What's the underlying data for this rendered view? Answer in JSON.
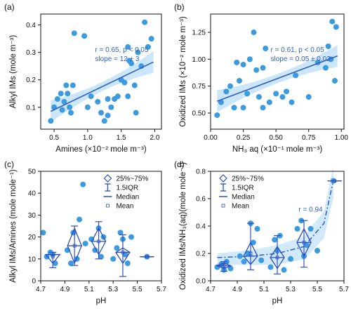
{
  "chart_data": [
    {
      "id": "a",
      "type": "scatter",
      "panel_label": "(a)",
      "xlabel": "Amines (×10⁻² mole m⁻³)",
      "ylabel": "Alkyl IMs (mole m⁻³)",
      "xlim": [
        0.3,
        2.1
      ],
      "ylim": [
        0.02,
        0.44
      ],
      "xticks": [
        0.5,
        1.0,
        1.5,
        2.0
      ],
      "xtick_labels": [
        "0.5",
        "1.0",
        "1.5",
        "2.0"
      ],
      "yticks": [
        0.1,
        0.2,
        0.3,
        0.4
      ],
      "ytick_labels": [
        "0.1",
        "0.2",
        "0.3",
        "0.4"
      ],
      "annotation": [
        "r = 0.65, p < 0.05",
        "slope = 12 ± 3"
      ],
      "fit": {
        "x": [
          0.45,
          1.98
        ],
        "y": [
          0.085,
          0.265
        ]
      },
      "points": {
        "x": [
          0.45,
          0.5,
          0.55,
          0.6,
          0.62,
          0.65,
          0.68,
          0.7,
          0.73,
          0.75,
          0.78,
          0.8,
          1.0,
          1.05,
          1.15,
          1.2,
          1.25,
          1.3,
          1.35,
          1.4,
          1.45,
          1.5,
          1.55,
          1.6,
          1.6,
          1.65,
          1.7,
          1.72,
          1.75,
          1.8,
          1.85,
          1.9,
          1.95,
          1.62,
          1.3,
          0.95
        ],
        "y": [
          0.05,
          0.1,
          0.13,
          0.15,
          0.09,
          0.12,
          0.18,
          0.15,
          0.1,
          0.08,
          0.18,
          0.37,
          0.1,
          0.14,
          0.12,
          0.08,
          0.05,
          0.13,
          0.1,
          0.13,
          0.14,
          0.2,
          0.19,
          0.14,
          0.32,
          0.26,
          0.18,
          0.08,
          0.3,
          0.25,
          0.41,
          0.32,
          0.35,
          0.27,
          0.07,
          0.36
        ]
      }
    },
    {
      "id": "b",
      "type": "scatter",
      "panel_label": "(b)",
      "xlabel": "NH₃ aq (×10⁻¹ mole m⁻³)",
      "ylabel": "Oxidized IMs (×10⁻² mole m⁻³)",
      "xlim": [
        0.0,
        1.02
      ],
      "ylim": [
        0.35,
        1.42
      ],
      "xticks": [
        0.0,
        0.25,
        0.5,
        0.75,
        1.0
      ],
      "xtick_labels": [
        "0.00",
        "0.25",
        "0.50",
        "0.75",
        "1.00"
      ],
      "yticks": [
        0.5,
        0.75,
        1.0,
        1.25
      ],
      "ytick_labels": [
        "0.50",
        "0.75",
        "1.00",
        "1.25"
      ],
      "annotation": [
        "r = 0.61, p < 0.05",
        "slope = 0.05 ± 0.02"
      ],
      "fit": {
        "x": [
          0.05,
          0.97
        ],
        "y": [
          0.61,
          1.03
        ]
      },
      "points": {
        "x": [
          0.05,
          0.08,
          0.12,
          0.15,
          0.18,
          0.2,
          0.22,
          0.25,
          0.28,
          0.3,
          0.33,
          0.35,
          0.37,
          0.4,
          0.42,
          0.45,
          0.5,
          0.55,
          0.58,
          0.62,
          0.65,
          0.75,
          0.82,
          0.88,
          0.9,
          0.92,
          0.93,
          0.95,
          0.96,
          0.25,
          0.4
        ],
        "y": [
          0.48,
          0.6,
          0.7,
          0.75,
          0.55,
          0.97,
          0.8,
          0.55,
          0.68,
          1.0,
          1.25,
          0.9,
          0.65,
          0.92,
          1.1,
          0.6,
          0.68,
          0.65,
          0.7,
          0.6,
          0.85,
          0.65,
          0.97,
          0.92,
          1.12,
          1.0,
          1.35,
          0.8,
          1.3,
          0.95,
          0.55
        ]
      }
    },
    {
      "id": "c",
      "type": "box",
      "panel_label": "(c)",
      "xlabel": "pH",
      "ylabel": "Alkyl IMs/Amines (mole mole⁻¹)",
      "xlim": [
        4.7,
        5.7
      ],
      "ylim": [
        0,
        50
      ],
      "xticks": [
        4.7,
        4.9,
        5.1,
        5.3,
        5.5,
        5.7
      ],
      "xtick_labels": [
        "4.7",
        "4.9",
        "5.1",
        "5.3",
        "5.5",
        "5.7"
      ],
      "yticks": [
        0,
        10,
        20,
        30,
        40,
        50
      ],
      "ytick_labels": [
        "0",
        "10",
        "20",
        "30",
        "40",
        "50"
      ],
      "legend": {
        "items": [
          "25%~75%",
          "1.5IQR",
          "Median",
          "Mean"
        ],
        "placement": "top-right"
      },
      "boxes": [
        {
          "x": 4.8,
          "q1": 8,
          "median": 12,
          "q3": 12,
          "whisker_low": 6,
          "whisker_high": 13,
          "mean": 11
        },
        {
          "x": 4.98,
          "q1": 8,
          "median": 16,
          "q3": 24,
          "whisker_low": 7,
          "whisker_high": 25,
          "mean": 16
        },
        {
          "x": 5.18,
          "q1": 12,
          "median": 18,
          "q3": 24,
          "whisker_low": 10,
          "whisker_high": 27,
          "mean": 18
        },
        {
          "x": 5.38,
          "q1": 8,
          "median": 13,
          "q3": 15,
          "whisker_low": 2,
          "whisker_high": 21,
          "mean": 13
        },
        {
          "x": 5.58,
          "q1": 11,
          "median": 11,
          "q3": 11,
          "whisker_low": 11,
          "whisker_high": 11,
          "mean": 11
        }
      ],
      "points": {
        "x": [
          4.72,
          4.75,
          4.78,
          4.8,
          4.82,
          4.92,
          4.95,
          4.97,
          5.0,
          5.02,
          5.05,
          5.07,
          5.12,
          5.15,
          5.18,
          5.2,
          5.22,
          5.3,
          5.33,
          5.36,
          5.38,
          5.4,
          5.42,
          5.45,
          5.58
        ],
        "y": [
          22,
          11,
          13,
          12,
          8,
          14,
          8,
          22,
          10,
          28,
          44,
          17,
          19,
          14,
          24,
          11,
          20,
          10,
          15,
          22,
          19,
          12,
          8,
          20,
          11
        ]
      }
    },
    {
      "id": "d",
      "type": "box",
      "panel_label": "(d)",
      "xlabel": "pH",
      "ylabel": "Oxidized IMs/NH₃(aq)(mole mole⁻¹)",
      "xlim": [
        4.7,
        5.7
      ],
      "ylim": [
        0,
        0.8
      ],
      "xticks": [
        4.7,
        4.9,
        5.1,
        5.3,
        5.5,
        5.7
      ],
      "xtick_labels": [
        "4.7",
        "4.9",
        "5.1",
        "5.3",
        "5.5",
        "5.7"
      ],
      "yticks": [
        0,
        0.2,
        0.4,
        0.6,
        0.8
      ],
      "ytick_labels": [
        "0.0",
        "0.2",
        "0.4",
        "0.6",
        "0.8"
      ],
      "legend": {
        "items": [
          "25%~75%",
          "1.5IQR",
          "Median",
          "Mean"
        ],
        "placement": "top-left"
      },
      "annotation": [
        "r = 0.94"
      ],
      "trend": {
        "x": [
          4.75,
          5.0,
          5.2,
          5.4,
          5.55,
          5.62
        ],
        "y": [
          0.17,
          0.18,
          0.2,
          0.25,
          0.42,
          0.73
        ]
      },
      "boxes": [
        {
          "x": 4.8,
          "q1": 0.09,
          "median": 0.11,
          "q3": 0.13,
          "whisker_low": 0.07,
          "whisker_high": 0.14,
          "mean": 0.11
        },
        {
          "x": 5.0,
          "q1": 0.12,
          "median": 0.18,
          "q3": 0.28,
          "whisker_low": 0.08,
          "whisker_high": 0.42,
          "mean": 0.2
        },
        {
          "x": 5.2,
          "q1": 0.09,
          "median": 0.17,
          "q3": 0.25,
          "whisker_low": 0.05,
          "whisker_high": 0.33,
          "mean": 0.17
        },
        {
          "x": 5.4,
          "q1": 0.18,
          "median": 0.28,
          "q3": 0.38,
          "whisker_low": 0.1,
          "whisker_high": 0.44,
          "mean": 0.28
        },
        {
          "x": 5.63,
          "q1": 0.73,
          "median": 0.73,
          "q3": 0.73,
          "whisker_low": 0.73,
          "whisker_high": 0.73,
          "mean": 0.73
        }
      ],
      "points": {
        "x": [
          4.75,
          4.78,
          4.8,
          4.82,
          4.85,
          4.92,
          4.95,
          4.98,
          5.0,
          5.02,
          5.05,
          5.08,
          5.15,
          5.18,
          5.2,
          5.22,
          5.25,
          5.3,
          5.35,
          5.38,
          5.4,
          5.42,
          5.45,
          5.5,
          5.62
        ],
        "y": [
          0.1,
          0.12,
          0.08,
          0.14,
          0.09,
          0.18,
          0.14,
          0.2,
          0.42,
          0.28,
          0.38,
          0.15,
          0.1,
          0.3,
          0.22,
          0.33,
          0.08,
          0.16,
          0.38,
          0.44,
          0.18,
          0.26,
          0.38,
          0.22,
          0.73
        ]
      }
    }
  ]
}
